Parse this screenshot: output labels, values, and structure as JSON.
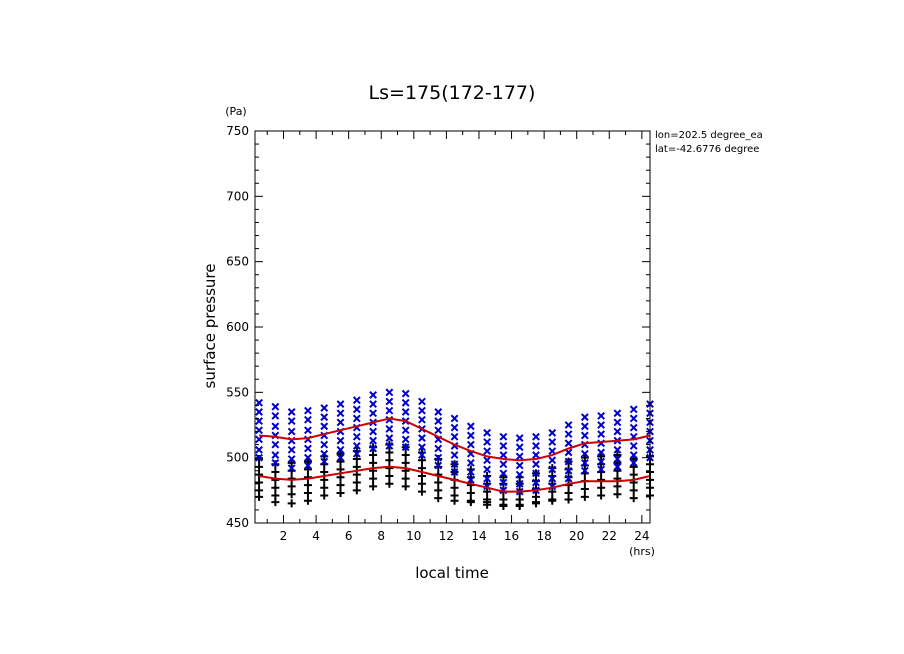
{
  "chart_data": {
    "type": "scatter",
    "title": "Ls=175(172-177)",
    "xlabel": "local time",
    "ylabel": "surface pressure",
    "x_unit": "(hrs)",
    "y_unit": "(Pa)",
    "xlim": [
      0.25,
      24.5
    ],
    "ylim": [
      450,
      750
    ],
    "xticks": [
      2,
      4,
      6,
      8,
      10,
      12,
      14,
      16,
      18,
      20,
      22,
      24
    ],
    "yticks": [
      450,
      500,
      550,
      600,
      650,
      700,
      750
    ],
    "annotations": [
      "lon=202.5 degree_ea",
      "lat=-42.6776 degree"
    ],
    "grid": false,
    "colors": {
      "upper": "#0000cc",
      "lower": "#000000",
      "mean_line": "#cc0000"
    },
    "upper_marker": "x",
    "lower_marker": "+",
    "x_hours": [
      0.5,
      1.5,
      2.5,
      3.5,
      4.5,
      5.5,
      6.5,
      7.5,
      8.5,
      9.5,
      10.5,
      11.5,
      12.5,
      13.5,
      14.5,
      15.5,
      16.5,
      17.5,
      18.5,
      19.5,
      20.5,
      21.5,
      22.5,
      23.5,
      24.5
    ],
    "upper_points": [
      [
        542,
        535,
        528,
        521,
        514,
        506,
        500
      ],
      [
        539,
        532,
        524,
        517,
        510,
        502,
        496
      ],
      [
        535,
        528,
        520,
        513,
        506,
        499,
        492
      ],
      [
        536,
        529,
        521,
        514,
        507,
        500,
        494
      ],
      [
        538,
        531,
        524,
        517,
        510,
        503,
        497
      ],
      [
        541,
        534,
        527,
        520,
        513,
        506,
        500
      ],
      [
        544,
        537,
        530,
        523,
        516,
        509,
        503
      ],
      [
        548,
        541,
        534,
        527,
        520,
        513,
        507
      ],
      [
        550,
        543,
        536,
        529,
        522,
        515,
        509
      ],
      [
        549,
        542,
        535,
        528,
        521,
        514,
        508
      ],
      [
        543,
        536,
        529,
        522,
        515,
        508,
        502
      ],
      [
        535,
        528,
        521,
        514,
        507,
        500,
        494
      ],
      [
        530,
        523,
        516,
        509,
        502,
        495,
        489
      ],
      [
        524,
        517,
        510,
        503,
        496,
        489,
        483
      ],
      [
        519,
        512,
        505,
        498,
        491,
        484,
        478
      ],
      [
        516,
        509,
        502,
        495,
        488,
        481,
        475
      ],
      [
        515,
        508,
        501,
        494,
        487,
        480,
        474
      ],
      [
        516,
        509,
        502,
        495,
        488,
        481,
        475
      ],
      [
        519,
        512,
        505,
        498,
        491,
        484,
        478
      ],
      [
        525,
        518,
        511,
        504,
        497,
        490,
        484
      ],
      [
        531,
        524,
        517,
        510,
        503,
        496,
        490
      ],
      [
        532,
        525,
        518,
        511,
        504,
        497,
        491
      ],
      [
        534,
        527,
        520,
        513,
        506,
        499,
        493
      ],
      [
        537,
        530,
        523,
        516,
        509,
        502,
        496
      ],
      [
        541,
        534,
        527,
        520,
        513,
        506,
        500
      ]
    ],
    "lower_points": [
      [
        499,
        493,
        487,
        481,
        475,
        470
      ],
      [
        495,
        489,
        483,
        477,
        471,
        466
      ],
      [
        496,
        490,
        484,
        478,
        472,
        465
      ],
      [
        497,
        491,
        485,
        479,
        473,
        467
      ],
      [
        501,
        495,
        489,
        483,
        477,
        471
      ],
      [
        503,
        497,
        491,
        485,
        479,
        473
      ],
      [
        505,
        499,
        493,
        487,
        481,
        475
      ],
      [
        508,
        502,
        496,
        490,
        484,
        478
      ],
      [
        510,
        504,
        498,
        492,
        486,
        480
      ],
      [
        508,
        502,
        496,
        490,
        484,
        478
      ],
      [
        504,
        498,
        492,
        486,
        480,
        474
      ],
      [
        499,
        493,
        487,
        481,
        475,
        469
      ],
      [
        495,
        489,
        483,
        477,
        471,
        467
      ],
      [
        491,
        485,
        479,
        473,
        467,
        466
      ],
      [
        486,
        480,
        474,
        468,
        466,
        464
      ],
      [
        485,
        480,
        474,
        468,
        464,
        463
      ],
      [
        485,
        480,
        474,
        468,
        464,
        463
      ],
      [
        488,
        482,
        476,
        470,
        466,
        465
      ],
      [
        492,
        486,
        480,
        474,
        468,
        467
      ],
      [
        497,
        491,
        485,
        479,
        473,
        468
      ],
      [
        500,
        494,
        488,
        482,
        476,
        470
      ],
      [
        501,
        495,
        489,
        483,
        477,
        471
      ],
      [
        502,
        496,
        490,
        484,
        478,
        472
      ],
      [
        499,
        493,
        487,
        481,
        475,
        469
      ],
      [
        501,
        495,
        489,
        483,
        477,
        471
      ]
    ],
    "upper_mean": [
      [
        0.5,
        517
      ],
      [
        1.5,
        516
      ],
      [
        2.5,
        514
      ],
      [
        3.5,
        515
      ],
      [
        4.5,
        518
      ],
      [
        5.5,
        521
      ],
      [
        6.5,
        524
      ],
      [
        7.5,
        527
      ],
      [
        8.5,
        530
      ],
      [
        9.5,
        528
      ],
      [
        10.5,
        522
      ],
      [
        11.5,
        516
      ],
      [
        12.5,
        510
      ],
      [
        13.5,
        505
      ],
      [
        14.5,
        501
      ],
      [
        15.5,
        499
      ],
      [
        16.5,
        498
      ],
      [
        17.5,
        499
      ],
      [
        18.5,
        502
      ],
      [
        19.5,
        507
      ],
      [
        20.5,
        511
      ],
      [
        21.5,
        512
      ],
      [
        22.5,
        513
      ],
      [
        23.5,
        514
      ],
      [
        24.5,
        517
      ]
    ],
    "lower_mean": [
      [
        0.5,
        486
      ],
      [
        1.5,
        484
      ],
      [
        2.5,
        483
      ],
      [
        3.5,
        484
      ],
      [
        4.5,
        486
      ],
      [
        5.5,
        488
      ],
      [
        6.5,
        490
      ],
      [
        7.5,
        492
      ],
      [
        8.5,
        493
      ],
      [
        9.5,
        492
      ],
      [
        10.5,
        489
      ],
      [
        11.5,
        486
      ],
      [
        12.5,
        483
      ],
      [
        13.5,
        480
      ],
      [
        14.5,
        477
      ],
      [
        15.5,
        474
      ],
      [
        16.5,
        474
      ],
      [
        17.5,
        475
      ],
      [
        18.5,
        477
      ],
      [
        19.5,
        480
      ],
      [
        20.5,
        482
      ],
      [
        21.5,
        482
      ],
      [
        22.5,
        482
      ],
      [
        23.5,
        483
      ],
      [
        24.5,
        486
      ]
    ]
  }
}
